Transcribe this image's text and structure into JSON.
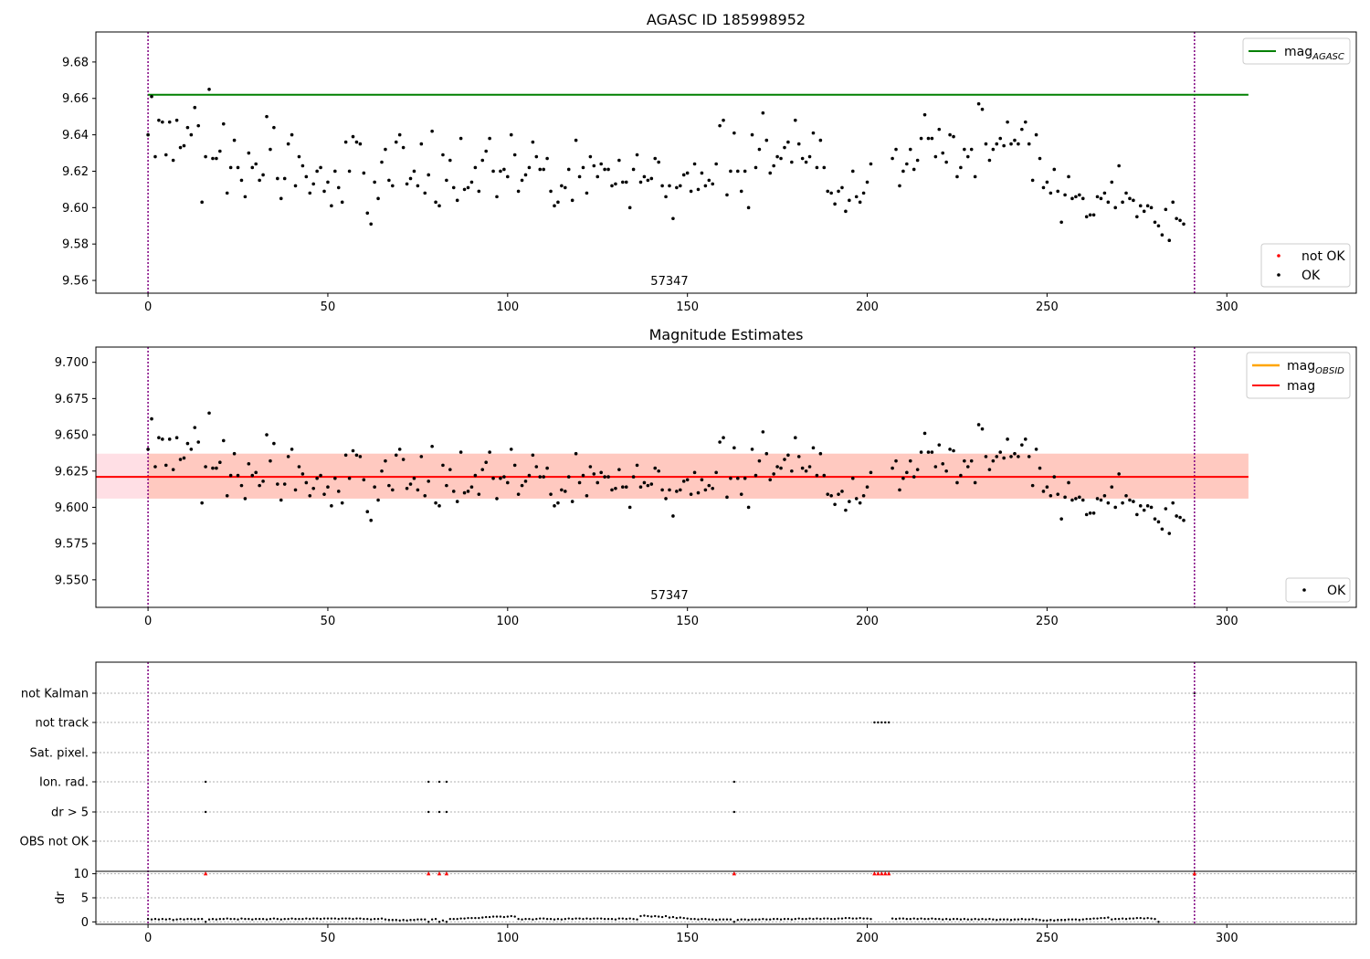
{
  "colors": {
    "ok_points": "#000000",
    "not_ok_points": "#ff0000",
    "agasc_line": "#008000",
    "obsid_line": "#ffa500",
    "mag_line": "#ff0000",
    "mag_band_outer": "#ffc0cb",
    "mag_band_inner": "#ffa07a",
    "obsid_boundary": "#800080",
    "grid": "#b0b0b0"
  },
  "chart_data": [
    {
      "type": "scatter",
      "title": "AGASC ID 185998952",
      "xlim": [
        -14.5,
        336
      ],
      "ylim": [
        9.553,
        9.6965
      ],
      "xticks": [
        0,
        50,
        100,
        150,
        200,
        250,
        300
      ],
      "yticks": [
        9.56,
        9.58,
        9.6,
        9.62,
        9.64,
        9.66,
        9.68
      ],
      "agasc_mag": 9.662,
      "agasc_line_x": [
        0,
        306
      ],
      "obsid_boundaries": [
        0,
        291
      ],
      "obsid_label": "57347",
      "obsid_label_x": 145,
      "series": [
        {
          "name": "not OK",
          "values": []
        },
        {
          "name": "OK",
          "values": "shared_samples"
        }
      ],
      "legends": {
        "line_legend": {
          "label_main": "mag",
          "label_sub": "AGASC",
          "placement": "upper right"
        },
        "point_legend": {
          "labels": [
            "not OK",
            "OK"
          ],
          "placement": "lower right"
        }
      }
    },
    {
      "type": "scatter",
      "title": "Magnitude Estimates",
      "xlim": [
        -14.5,
        336
      ],
      "ylim": [
        9.531,
        9.7105
      ],
      "xticks": [
        0,
        50,
        100,
        150,
        200,
        250,
        300
      ],
      "yticks": [
        9.55,
        9.575,
        9.6,
        9.625,
        9.65,
        9.675,
        9.7
      ],
      "mag": 9.621,
      "mag_band_outer": [
        9.606,
        9.637
      ],
      "mag_band_inner": [
        9.606,
        9.637
      ],
      "mag_line_x": [
        -14.5,
        306
      ],
      "obsid_boundaries": [
        0,
        291
      ],
      "obsid_label": "57347",
      "obsid_label_x": 145,
      "series": [
        {
          "name": "OK",
          "values": "shared_samples"
        }
      ],
      "legends": {
        "line_legend": {
          "labels": [
            {
              "main": "mag",
              "sub": "OBSID"
            },
            {
              "main": "mag",
              "sub": ""
            }
          ],
          "placement": "upper right"
        },
        "point_legend": {
          "labels": [
            "OK"
          ],
          "placement": "lower right"
        }
      }
    },
    {
      "type": "scatter",
      "title": "",
      "xlim": [
        -14.5,
        336
      ],
      "xticks": [
        0,
        50,
        100,
        150,
        200,
        250,
        300
      ],
      "flag_categories": [
        "not Kalman",
        "not track",
        "Sat. pixel.",
        "Ion. rad.",
        "dr > 5",
        "OBS not OK"
      ],
      "flag_points": {
        "not Kalman": [
          291
        ],
        "not track": [
          202,
          203,
          204,
          205,
          206
        ],
        "Sat. pixel.": [],
        "Ion. rad.": [
          16,
          78,
          81,
          83,
          163
        ],
        "dr > 5": [
          16,
          78,
          81,
          83,
          163
        ],
        "OBS not OK": []
      },
      "ylabel": "dr",
      "dr_yticks": [
        0,
        5,
        10
      ],
      "dr_ylim": [
        -0.5,
        10.5
      ],
      "dr_clipped_x": [
        16,
        78,
        81,
        83,
        163,
        202,
        203,
        204,
        205,
        206,
        291
      ],
      "dr_clipped_value": 10,
      "obsid_boundaries": [
        0,
        291
      ]
    }
  ],
  "samples": {
    "x": [
      0,
      1,
      2,
      3,
      4,
      5,
      6,
      7,
      8,
      9,
      10,
      11,
      12,
      13,
      14,
      15,
      16,
      17,
      18,
      19,
      20,
      21,
      22,
      23,
      24,
      25,
      26,
      27,
      28,
      29,
      30,
      31,
      32,
      33,
      34,
      35,
      36,
      37,
      38,
      39,
      40,
      41,
      42,
      43,
      44,
      45,
      46,
      47,
      48,
      49,
      50,
      51,
      52,
      53,
      54,
      55,
      56,
      57,
      58,
      59,
      60,
      61,
      62,
      63,
      64,
      65,
      66,
      67,
      68,
      69,
      70,
      71,
      72,
      73,
      74,
      75,
      76,
      77,
      78,
      79,
      80,
      81,
      82,
      83,
      84,
      85,
      86,
      87,
      88,
      89,
      90,
      91,
      92,
      93,
      94,
      95,
      96,
      97,
      98,
      99,
      100,
      101,
      102,
      103,
      104,
      105,
      106,
      107,
      108,
      109,
      110,
      111,
      112,
      113,
      114,
      115,
      116,
      117,
      118,
      119,
      120,
      121,
      122,
      123,
      124,
      125,
      126,
      127,
      128,
      129,
      130,
      131,
      132,
      133,
      134,
      135,
      136,
      137,
      138,
      139,
      140,
      141,
      142,
      143,
      144,
      145,
      146,
      147,
      148,
      149,
      150,
      151,
      152,
      153,
      154,
      155,
      156,
      157,
      158,
      159,
      160,
      161,
      162,
      163,
      164,
      165,
      166,
      167,
      168,
      169,
      170,
      171,
      172,
      173,
      174,
      175,
      176,
      177,
      178,
      179,
      180,
      181,
      182,
      183,
      184,
      185,
      186,
      187,
      188,
      189,
      190,
      191,
      192,
      193,
      194,
      195,
      196,
      197,
      198,
      199,
      200,
      201,
      207,
      208,
      209,
      210,
      211,
      212,
      213,
      214,
      215,
      216,
      217,
      218,
      219,
      220,
      221,
      222,
      223,
      224,
      225,
      226,
      227,
      228,
      229,
      230,
      231,
      232,
      233,
      234,
      235,
      236,
      237,
      238,
      239,
      240,
      241,
      242,
      243,
      244,
      245,
      246,
      247,
      248,
      249,
      250,
      251,
      252,
      253,
      254,
      255,
      256,
      257,
      258,
      259,
      260,
      261,
      262,
      263,
      264,
      265,
      266,
      267,
      268,
      269,
      270,
      271,
      272,
      273,
      274,
      275,
      276,
      277,
      278,
      279,
      280,
      281,
      282,
      283,
      284,
      285,
      286,
      287,
      288,
      289,
      290,
      291
    ],
    "mag": [
      9.64,
      9.661,
      9.628,
      9.648,
      9.647,
      9.629,
      9.647,
      9.626,
      9.648,
      9.633,
      9.634,
      9.644,
      9.64,
      9.655,
      9.645,
      9.603,
      9.628,
      9.665,
      9.627,
      9.627,
      9.631,
      9.646,
      9.608,
      9.622,
      9.637,
      9.622,
      9.615,
      9.606,
      9.63,
      9.622,
      9.624,
      9.615,
      9.618,
      9.65,
      9.632,
      9.644,
      9.616,
      9.605,
      9.616,
      9.635,
      9.64,
      9.612,
      9.628,
      9.623,
      9.617,
      9.608,
      9.613,
      9.62,
      9.622,
      9.609,
      9.614,
      9.601,
      9.62,
      9.611,
      9.603,
      9.636,
      9.62,
      9.639,
      9.636,
      9.635,
      9.619,
      9.597,
      9.591,
      9.614,
      9.605,
      9.625,
      9.632,
      9.615,
      9.612,
      9.636,
      9.64,
      9.633,
      9.613,
      9.616,
      9.62,
      9.612,
      9.635,
      9.608,
      9.618,
      9.642,
      9.603,
      9.601,
      9.629,
      9.615,
      9.626,
      9.611,
      9.604,
      9.638,
      9.61,
      9.611,
      9.614,
      9.622,
      9.609,
      9.626,
      9.631,
      9.638,
      9.62,
      9.606,
      9.62,
      9.621,
      9.617,
      9.64,
      9.629,
      9.609,
      9.615,
      9.618,
      9.622,
      9.636,
      9.628,
      9.621,
      9.621,
      9.627,
      9.609,
      9.601,
      9.603,
      9.612,
      9.611,
      9.621,
      9.604,
      9.637,
      9.617,
      9.622,
      9.608,
      9.628,
      9.623,
      9.617,
      9.624,
      9.621,
      9.621,
      9.612,
      9.613,
      9.626,
      9.614,
      9.614,
      9.6,
      9.621,
      9.629,
      9.614,
      9.617,
      9.615,
      9.616,
      9.627,
      9.625,
      9.612,
      9.606,
      9.612,
      9.594,
      9.611,
      9.612,
      9.618,
      9.619,
      9.609,
      9.624,
      9.61,
      9.619,
      9.612,
      9.615,
      9.613,
      9.624,
      9.645,
      9.648,
      9.607,
      9.62,
      9.641,
      9.62,
      9.609,
      9.62,
      9.6,
      9.64,
      9.622,
      9.632,
      9.652,
      9.637,
      9.619,
      9.623,
      9.628,
      9.627,
      9.633,
      9.636,
      9.625,
      9.648,
      9.635,
      9.627,
      9.625,
      9.628,
      9.641,
      9.622,
      9.637,
      9.622,
      9.609,
      9.608,
      9.602,
      9.609,
      9.611,
      9.598,
      9.604,
      9.62,
      9.606,
      9.603,
      9.608,
      9.614,
      9.624,
      9.627,
      9.632,
      9.612,
      9.62,
      9.624,
      9.632,
      9.621,
      9.626,
      9.638,
      9.651,
      9.638,
      9.638,
      9.628,
      9.643,
      9.63,
      9.625,
      9.64,
      9.639,
      9.617,
      9.622,
      9.632,
      9.628,
      9.632,
      9.617,
      9.657,
      9.654,
      9.635,
      9.626,
      9.632,
      9.635,
      9.638,
      9.634,
      9.647,
      9.635,
      9.637,
      9.635,
      9.643,
      9.647,
      9.635,
      9.615,
      9.64,
      9.627,
      9.611,
      9.614,
      9.608,
      9.621,
      9.609,
      9.592,
      9.607,
      9.617,
      9.605,
      9.606,
      9.607,
      9.605,
      9.595,
      9.596,
      9.596,
      9.606,
      9.605,
      9.608,
      9.603,
      9.614,
      9.6,
      9.623,
      9.603,
      9.608,
      9.605,
      9.604,
      9.595,
      9.601,
      9.598,
      9.601,
      9.6,
      9.592,
      9.59,
      9.585,
      9.599,
      9.582,
      9.603,
      9.594,
      9.593,
      9.591
    ],
    "dr": [
      0.6,
      0.5,
      0.6,
      0.5,
      0.6,
      0.5,
      0.6,
      0.4,
      0.5,
      0.6,
      0.5,
      0.6,
      0.6,
      0.5,
      0.6,
      0.6,
      10,
      0.5,
      0.6,
      0.5,
      0.6,
      0.6,
      0.7,
      0.6,
      0.6,
      0.5,
      0.7,
      0.6,
      0.6,
      0.5,
      0.6,
      0.6,
      0.6,
      0.5,
      0.6,
      0.7,
      0.6,
      0.5,
      0.6,
      0.6,
      0.7,
      0.6,
      0.6,
      0.6,
      0.7,
      0.6,
      0.7,
      0.7,
      0.6,
      0.7,
      0.7,
      0.7,
      0.7,
      0.6,
      0.7,
      0.7,
      0.7,
      0.6,
      0.7,
      0.7,
      0.6,
      0.6,
      0.5,
      0.6,
      0.6,
      0.7,
      0.5,
      0.4,
      0.4,
      0.4,
      0.3,
      0.4,
      0.3,
      0.4,
      0.4,
      0.5,
      0.5,
      0.5,
      10,
      0.5,
      0.6,
      10,
      0.3,
      10,
      0.6,
      0.6,
      0.6,
      0.7,
      0.7,
      0.8,
      0.8,
      0.8,
      0.8,
      0.9,
      1.0,
      1.0,
      1.1,
      1.1,
      1.1,
      1.0,
      1.1,
      1.2,
      1.1,
      0.6,
      0.5,
      0.6,
      0.6,
      0.5,
      0.6,
      0.7,
      0.7,
      0.6,
      0.6,
      0.5,
      0.6,
      0.5,
      0.6,
      0.7,
      0.6,
      0.7,
      0.7,
      0.6,
      0.7,
      0.6,
      0.7,
      0.7,
      0.7,
      0.6,
      0.6,
      0.6,
      0.5,
      0.7,
      0.7,
      0.6,
      0.7,
      0.6,
      0.5,
      1.2,
      1.3,
      1.2,
      1.1,
      1.2,
      1.1,
      1.0,
      1.2,
      0.9,
      1.0,
      0.8,
      0.9,
      0.8,
      0.7,
      0.6,
      0.6,
      0.5,
      0.6,
      0.6,
      0.5,
      0.5,
      0.4,
      0.5,
      0.5,
      0.5,
      0.5,
      10,
      0.4,
      0.5,
      0.5,
      0.4,
      0.5,
      0.5,
      0.5,
      0.6,
      0.5,
      0.5,
      0.6,
      0.6,
      0.5,
      0.6,
      0.6,
      0.5,
      0.6,
      0.7,
      0.6,
      0.6,
      0.7,
      0.6,
      0.7,
      0.6,
      0.7,
      0.7,
      0.6,
      0.6,
      0.7,
      0.7,
      0.8,
      0.8,
      0.7,
      0.7,
      0.8,
      0.7,
      0.7,
      0.6,
      0.7,
      0.6,
      0.7,
      0.7,
      0.6,
      0.6,
      0.7,
      0.6,
      0.7,
      0.6,
      0.6,
      0.7,
      0.6,
      0.6,
      0.5,
      0.6,
      0.5,
      0.6,
      0.6,
      0.5,
      0.6,
      0.5,
      0.5,
      0.6,
      0.5,
      0.6,
      0.5,
      0.6,
      0.5,
      0.4,
      0.5,
      0.5,
      0.5,
      0.4,
      0.5,
      0.5,
      0.6,
      0.5,
      0.5,
      0.6,
      0.5,
      0.4,
      0.3,
      0.3,
      0.4,
      0.3,
      0.4,
      0.4,
      0.4,
      0.5,
      0.5,
      0.5,
      0.4,
      0.5,
      0.6,
      0.6,
      0.7,
      0.7,
      0.8,
      0.8,
      0.9,
      0.5,
      0.6,
      0.6,
      0.7,
      0.6,
      0.7,
      0.7,
      0.8,
      0.8,
      0.7,
      0.8,
      0.7,
      0.6,
      10
    ]
  }
}
